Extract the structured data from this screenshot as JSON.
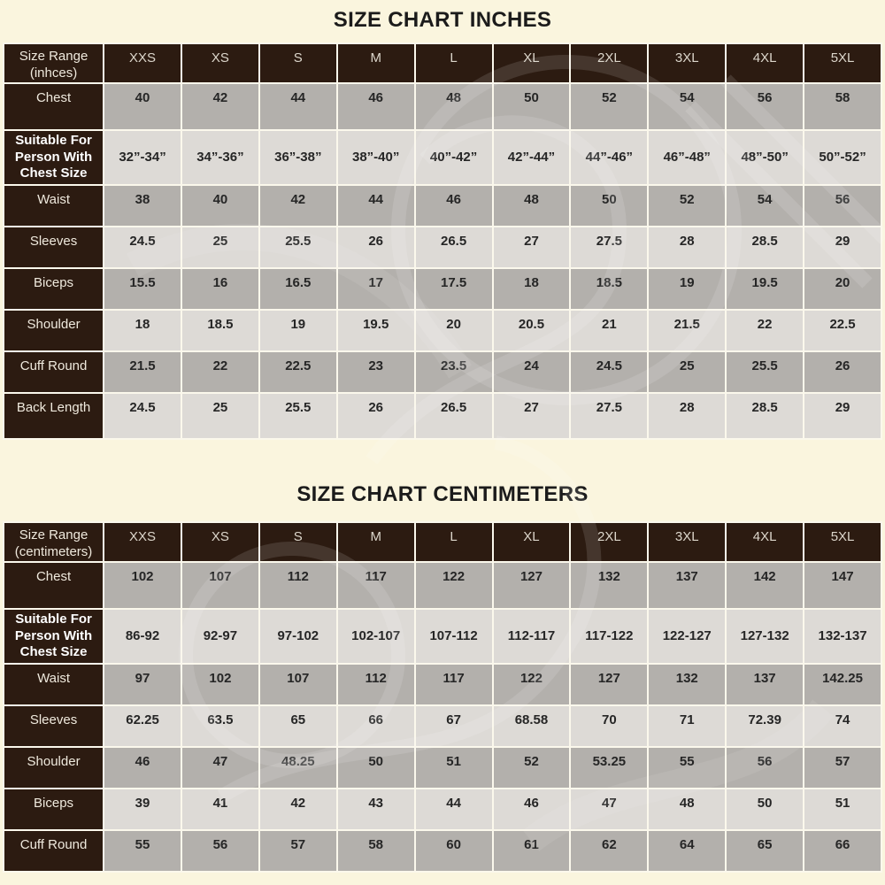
{
  "colors": {
    "background": "#FAF5DE",
    "header_brown": "#2C1B11",
    "row_medium": "#B3B0AC",
    "row_light": "#DDDAD6",
    "grid_line": "#FBF8EC",
    "title_text": "#1B1B1B",
    "header_text": "#DCD6CB",
    "label_text": "#EFE9DD",
    "cell_text": "#262626"
  },
  "chart_data": [
    {
      "type": "table",
      "title": "SIZE CHART INCHES",
      "corner_label": "Size Range (inhces)",
      "columns": [
        "XXS",
        "XS",
        "S",
        "M",
        "L",
        "XL",
        "2XL",
        "3XL",
        "4XL",
        "5XL"
      ],
      "rows": [
        {
          "label": "Chest",
          "values": [
            "40",
            "42",
            "44",
            "46",
            "48",
            "50",
            "52",
            "54",
            "56",
            "58"
          ]
        },
        {
          "label": "Suitable For Person With Chest Size",
          "values": [
            "32”-34”",
            "34”-36”",
            "36”-38”",
            "38”-40”",
            "40”-42”",
            "42”-44”",
            "44”-46”",
            "46”-48”",
            "48”-50”",
            "50”-52”"
          ]
        },
        {
          "label": "Waist",
          "values": [
            "38",
            "40",
            "42",
            "44",
            "46",
            "48",
            "50",
            "52",
            "54",
            "56"
          ]
        },
        {
          "label": "Sleeves",
          "values": [
            "24.5",
            "25",
            "25.5",
            "26",
            "26.5",
            "27",
            "27.5",
            "28",
            "28.5",
            "29"
          ]
        },
        {
          "label": "Biceps",
          "values": [
            "15.5",
            "16",
            "16.5",
            "17",
            "17.5",
            "18",
            "18.5",
            "19",
            "19.5",
            "20"
          ]
        },
        {
          "label": "Shoulder",
          "values": [
            "18",
            "18.5",
            "19",
            "19.5",
            "20",
            "20.5",
            "21",
            "21.5",
            "22",
            "22.5"
          ]
        },
        {
          "label": "Cuff Round",
          "values": [
            "21.5",
            "22",
            "22.5",
            "23",
            "23.5",
            "24",
            "24.5",
            "25",
            "25.5",
            "26"
          ]
        },
        {
          "label": "Back Length",
          "values": [
            "24.5",
            "25",
            "25.5",
            "26",
            "26.5",
            "27",
            "27.5",
            "28",
            "28.5",
            "29"
          ]
        }
      ]
    },
    {
      "type": "table",
      "title": "SIZE CHART CENTIMETERS",
      "corner_label": "Size Range (centimeters)",
      "columns": [
        "XXS",
        "XS",
        "S",
        "M",
        "L",
        "XL",
        "2XL",
        "3XL",
        "4XL",
        "5XL"
      ],
      "rows": [
        {
          "label": "Chest",
          "values": [
            "102",
            "107",
            "112",
            "117",
            "122",
            "127",
            "132",
            "137",
            "142",
            "147"
          ]
        },
        {
          "label": "Suitable For Person With Chest Size",
          "values": [
            "86-92",
            "92-97",
            "97-102",
            "102-107",
            "107-112",
            "112-117",
            "117-122",
            "122-127",
            "127-132",
            "132-137"
          ]
        },
        {
          "label": "Waist",
          "values": [
            "97",
            "102",
            "107",
            "112",
            "117",
            "122",
            "127",
            "132",
            "137",
            "142.25"
          ]
        },
        {
          "label": "Sleeves",
          "values": [
            "62.25",
            "63.5",
            "65",
            "66",
            "67",
            "68.58",
            "70",
            "71",
            "72.39",
            "74"
          ]
        },
        {
          "label": "Shoulder",
          "values": [
            "46",
            "47",
            "48.25",
            "50",
            "51",
            "52",
            "53.25",
            "55",
            "56",
            "57"
          ]
        },
        {
          "label": "Biceps",
          "values": [
            "39",
            "41",
            "42",
            "43",
            "44",
            "46",
            "47",
            "48",
            "50",
            "51"
          ]
        },
        {
          "label": "Cuff Round",
          "values": [
            "55",
            "56",
            "57",
            "58",
            "60",
            "61",
            "62",
            "64",
            "65",
            "66"
          ]
        }
      ]
    }
  ]
}
